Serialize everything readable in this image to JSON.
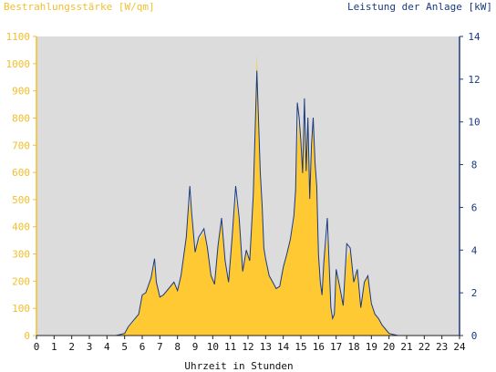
{
  "chart_data": {
    "type": "area",
    "title_left": "Bestrahlungsstärke [W/qm]",
    "title_right": "Leistung der Anlage [kW]",
    "xlabel": "Uhrzeit in Stunden",
    "xlim": [
      0,
      24
    ],
    "ylim_left": [
      0,
      1100
    ],
    "ylim_right": [
      0,
      14
    ],
    "x_ticks": [
      "0",
      "1",
      "2",
      "3",
      "4",
      "5",
      "6",
      "7",
      "8",
      "9",
      "10",
      "11",
      "12",
      "13",
      "14",
      "15",
      "16",
      "17",
      "18",
      "19",
      "20",
      "21",
      "22",
      "23",
      "24"
    ],
    "y_ticks_left": [
      "0",
      "100",
      "200",
      "300",
      "400",
      "500",
      "600",
      "700",
      "800",
      "900",
      "1000",
      "1100"
    ],
    "y_ticks_right": [
      "0",
      "2",
      "4",
      "6",
      "8",
      "10",
      "12",
      "14"
    ],
    "grid": false,
    "colors": {
      "plot_bg": "#dcdcdc",
      "irradiance": "#ffc933",
      "power": "#1a3a80",
      "left_axis": "#f2be2c",
      "right_axis": "#1a3a80"
    },
    "series": [
      {
        "name": "Bestrahlungsstärke",
        "axis": "left",
        "style": "area",
        "x": [
          0,
          4.5,
          5.0,
          5.2,
          5.5,
          5.8,
          6.0,
          6.2,
          6.5,
          6.7,
          6.8,
          7.0,
          7.2,
          7.5,
          7.8,
          8.0,
          8.2,
          8.5,
          8.7,
          8.8,
          9.0,
          9.2,
          9.5,
          9.7,
          9.9,
          10.1,
          10.3,
          10.5,
          10.7,
          10.9,
          11.1,
          11.3,
          11.5,
          11.7,
          11.9,
          12.1,
          12.3,
          12.5,
          12.7,
          12.8,
          12.9,
          13.0,
          13.2,
          13.4,
          13.6,
          13.8,
          14.0,
          14.2,
          14.4,
          14.6,
          14.7,
          14.8,
          14.9,
          15.0,
          15.1,
          15.2,
          15.3,
          15.4,
          15.5,
          15.6,
          15.7,
          15.8,
          15.9,
          16.0,
          16.1,
          16.2,
          16.3,
          16.5,
          16.7,
          16.8,
          16.9,
          17.0,
          17.2,
          17.4,
          17.6,
          17.8,
          18.0,
          18.2,
          18.4,
          18.6,
          18.8,
          19.0,
          19.2,
          19.4,
          19.6,
          19.8,
          20.0,
          20.2,
          20.5,
          24
        ],
        "y": [
          0,
          0,
          10,
          30,
          50,
          80,
          150,
          155,
          210,
          260,
          200,
          140,
          150,
          170,
          200,
          160,
          220,
          360,
          500,
          430,
          300,
          350,
          380,
          330,
          230,
          200,
          330,
          420,
          280,
          200,
          350,
          500,
          420,
          240,
          320,
          280,
          520,
          1040,
          600,
          480,
          320,
          280,
          220,
          200,
          170,
          180,
          250,
          300,
          350,
          420,
          520,
          700,
          800,
          720,
          600,
          780,
          600,
          800,
          500,
          700,
          780,
          640,
          550,
          300,
          200,
          150,
          270,
          360,
          100,
          60,
          80,
          240,
          180,
          110,
          280,
          320,
          200,
          240,
          100,
          200,
          220,
          120,
          80,
          60,
          40,
          25,
          10,
          5,
          0,
          0
        ]
      },
      {
        "name": "Leistung der Anlage",
        "axis": "right",
        "style": "line",
        "x": [
          0,
          4.5,
          5.0,
          5.2,
          5.5,
          5.8,
          6.0,
          6.2,
          6.5,
          6.7,
          6.8,
          7.0,
          7.2,
          7.5,
          7.8,
          8.0,
          8.2,
          8.5,
          8.7,
          8.8,
          9.0,
          9.2,
          9.5,
          9.7,
          9.9,
          10.1,
          10.3,
          10.5,
          10.7,
          10.9,
          11.1,
          11.3,
          11.5,
          11.7,
          11.9,
          12.1,
          12.3,
          12.5,
          12.7,
          12.8,
          12.9,
          13.0,
          13.2,
          13.4,
          13.6,
          13.8,
          14.0,
          14.2,
          14.4,
          14.6,
          14.7,
          14.8,
          14.9,
          15.0,
          15.1,
          15.2,
          15.3,
          15.4,
          15.5,
          15.6,
          15.7,
          15.8,
          15.9,
          16.0,
          16.1,
          16.2,
          16.3,
          16.5,
          16.7,
          16.8,
          16.9,
          17.0,
          17.2,
          17.4,
          17.6,
          17.8,
          18.0,
          18.2,
          18.4,
          18.6,
          18.8,
          19.0,
          19.2,
          19.4,
          19.6,
          19.8,
          20.0,
          20.2,
          20.5,
          24
        ],
        "y": [
          0,
          0,
          0.1,
          0.4,
          0.7,
          1.0,
          1.9,
          2.0,
          2.7,
          3.6,
          2.5,
          1.8,
          1.9,
          2.2,
          2.5,
          2.1,
          2.8,
          4.6,
          7.0,
          5.8,
          3.9,
          4.6,
          5.0,
          4.1,
          2.8,
          2.4,
          4.2,
          5.5,
          3.5,
          2.5,
          4.6,
          7.0,
          5.5,
          3.0,
          4.0,
          3.5,
          6.6,
          12.4,
          7.6,
          6.1,
          4.1,
          3.6,
          2.8,
          2.5,
          2.2,
          2.3,
          3.2,
          3.8,
          4.5,
          5.6,
          6.8,
          10.9,
          10.2,
          9.1,
          7.6,
          11.1,
          7.7,
          10.2,
          6.4,
          8.9,
          10.2,
          8.1,
          7.0,
          3.8,
          2.5,
          1.9,
          3.4,
          5.5,
          1.3,
          0.8,
          1.0,
          3.1,
          2.3,
          1.4,
          4.3,
          4.1,
          2.5,
          3.1,
          1.3,
          2.5,
          2.8,
          1.5,
          1.0,
          0.8,
          0.5,
          0.3,
          0.1,
          0.06,
          0,
          0
        ]
      }
    ]
  }
}
